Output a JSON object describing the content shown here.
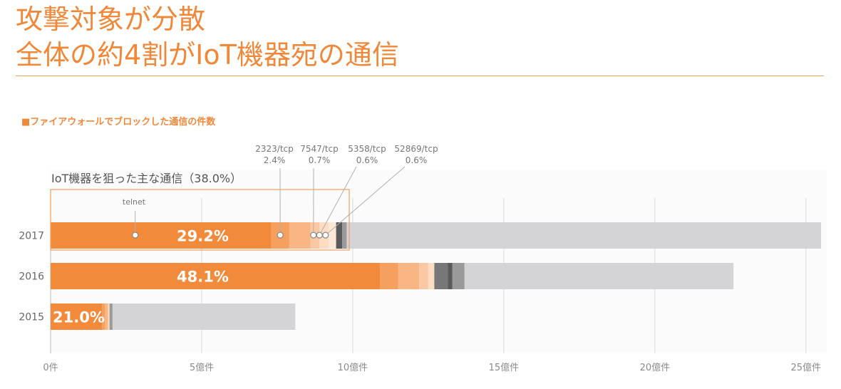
{
  "slide": {
    "title_line1": "攻撃対象が分散",
    "title_line2": "全体の約4割がIoT機器宛の通信",
    "chart_title": "■ファイアウォールでブロックした通信の件数"
  },
  "colors": {
    "accent": "#f0883a",
    "orange_main": "#f28a3c",
    "orange_2": "#f5a05e",
    "orange_3": "#f8b684",
    "orange_4": "#fac9a3",
    "orange_5": "#fcdcc2",
    "dark_1": "#5a5a5a",
    "dark_2": "#777777",
    "dark_3": "#9a9a9a",
    "grey_rest": "#d4d4d6",
    "plot_bg": "#fbfbfb"
  },
  "chart_data": {
    "type": "bar",
    "orientation": "horizontal",
    "stacked": true,
    "categories": [
      "2017",
      "2016",
      "2015"
    ],
    "xlim": [
      0,
      25.5
    ],
    "xtick_values": [
      0,
      5,
      10,
      15,
      20,
      25
    ],
    "xtick_labels": [
      "0件",
      "5億件",
      "10億件",
      "15億件",
      "20億件",
      "25億件"
    ],
    "grid": true,
    "bars": [
      {
        "category": "2017",
        "label": "29.2%",
        "segments": [
          {
            "value": 7.3,
            "color": "#f28a3c"
          },
          {
            "value": 0.6,
            "color": "#f5a05e"
          },
          {
            "value": 0.7,
            "color": "#f8b684"
          },
          {
            "value": 0.3,
            "color": "#fac9a3"
          },
          {
            "value": 0.3,
            "color": "#fcdcc2"
          },
          {
            "value": 0.25,
            "color": "#fde8d6"
          },
          {
            "value": 0.2,
            "color": "#5a5a5a"
          },
          {
            "value": 0.15,
            "color": "#9a9a9a"
          },
          {
            "value": 15.7,
            "color": "#d4d4d6"
          }
        ]
      },
      {
        "category": "2016",
        "label": "48.1%",
        "segments": [
          {
            "value": 10.9,
            "color": "#f28a3c"
          },
          {
            "value": 0.6,
            "color": "#f5a05e"
          },
          {
            "value": 0.7,
            "color": "#f8b684"
          },
          {
            "value": 0.3,
            "color": "#fac9a3"
          },
          {
            "value": 0.2,
            "color": "#fcdcc2"
          },
          {
            "value": 0.45,
            "color": "#777777"
          },
          {
            "value": 0.15,
            "color": "#5a5a5a"
          },
          {
            "value": 0.4,
            "color": "#9a9a9a"
          },
          {
            "value": 8.9,
            "color": "#d4d4d6"
          }
        ]
      },
      {
        "category": "2015",
        "label": "21.0%",
        "segments": [
          {
            "value": 1.7,
            "color": "#f28a3c"
          },
          {
            "value": 0.1,
            "color": "#f5a05e"
          },
          {
            "value": 0.1,
            "color": "#f8b684"
          },
          {
            "value": 0.05,
            "color": "#fcdcc2"
          },
          {
            "value": 0.1,
            "color": "#9a9a9a"
          },
          {
            "value": 6.05,
            "color": "#d4d4d6"
          }
        ]
      }
    ],
    "iot_group_label": "IoT機器を狙った主な通信（38.0%）",
    "annotations": [
      {
        "name": "telnet",
        "port": "telnet",
        "share": "",
        "x_value": 2.8
      },
      {
        "name": "2323",
        "port": "2323/tcp",
        "share": "2.4%",
        "x_value": 7.6
      },
      {
        "name": "7547",
        "port": "7547/tcp",
        "share": "0.7%",
        "x_value": 8.7
      },
      {
        "name": "5358",
        "port": "5358/tcp",
        "share": "0.6%",
        "x_value": 8.9
      },
      {
        "name": "52869",
        "port": "52869/tcp",
        "share": "0.6%",
        "x_value": 9.1
      }
    ]
  }
}
